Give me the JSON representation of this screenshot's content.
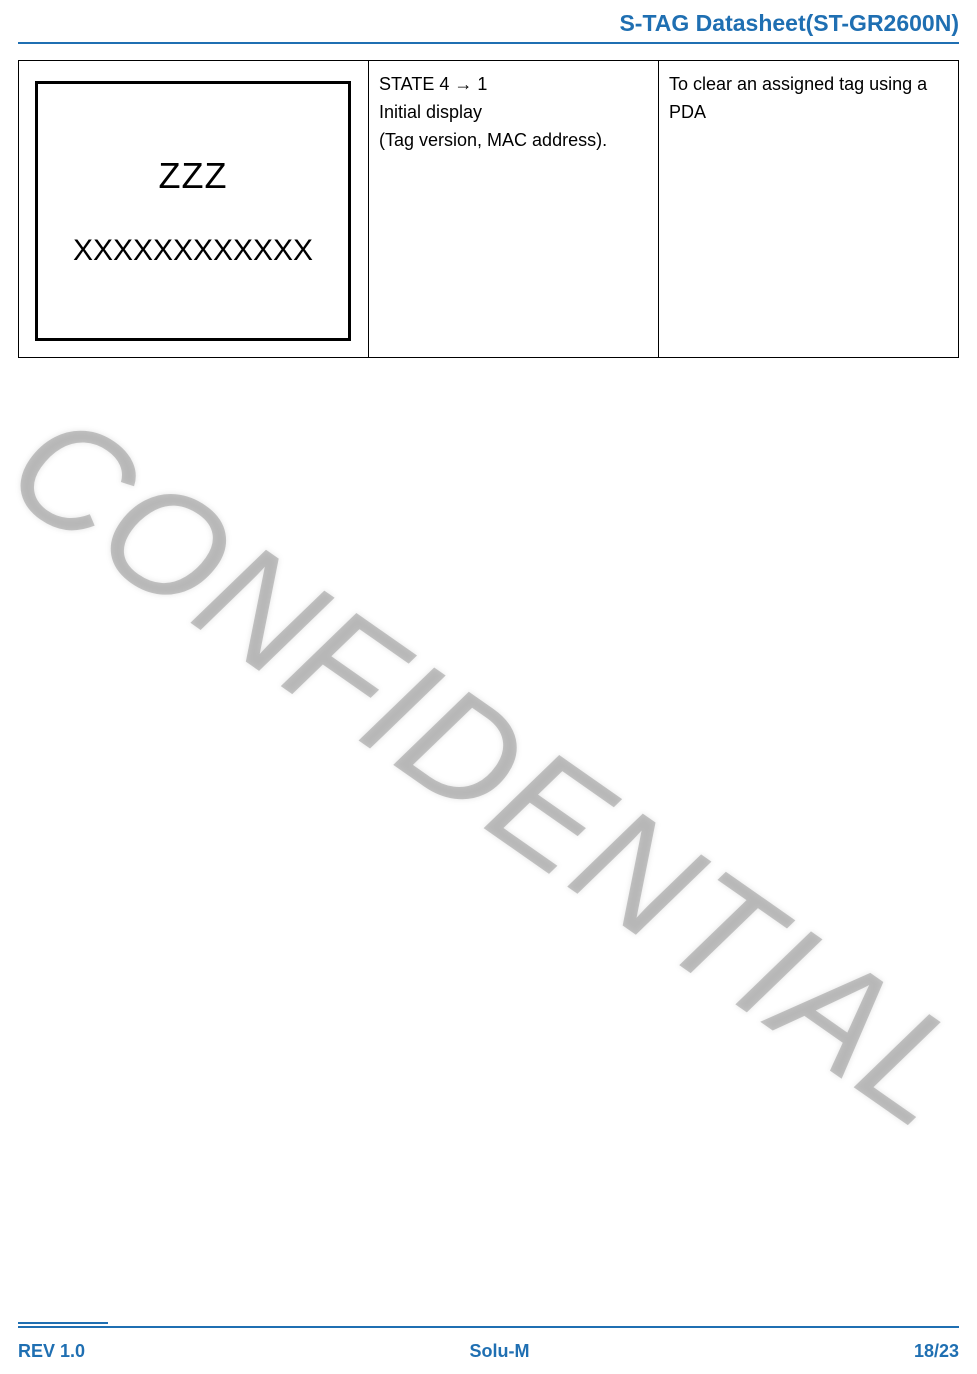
{
  "header": {
    "title": "S-TAG Datasheet(ST-GR2600N)"
  },
  "table": {
    "row": {
      "tag_line1": "ZZZ",
      "tag_line2": "XXXXXXXXXXXX",
      "state_line1": "STATE 4 → 1",
      "state_line2": "Initial display",
      "state_line3": "(Tag version, MAC address).",
      "desc": "To clear an assigned tag using a PDA"
    }
  },
  "watermark": "CONFIDENTIAL",
  "footer": {
    "rev": "REV 1.0",
    "company": "Solu-M",
    "page": "18/23"
  },
  "colors": {
    "brand": "#1f6fb2",
    "text": "#000000",
    "bg": "#ffffff"
  }
}
